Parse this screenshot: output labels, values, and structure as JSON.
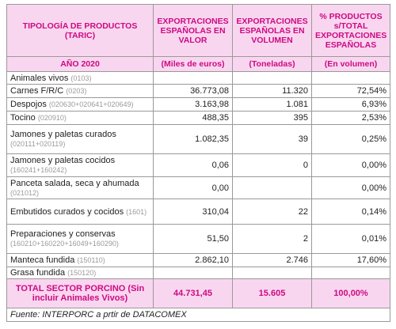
{
  "table": {
    "header": [
      "TIPOLOGÍA DE PRODUCTOS (TARIC)",
      "EXPORTACIONES ESPAÑOLAS EN VALOR",
      "EXPORTACIONES ESPAÑOLAS EN VOLUMEN",
      "% PRODUCTOS s/TOTAL EXPORTACIONES ESPAÑOLAS"
    ],
    "units": [
      "AÑO 2020",
      "(Miles de euros)",
      "(Toneladas)",
      "(En volumen)"
    ],
    "rows": [
      {
        "label": "Animales vivos",
        "code": "(0103)",
        "values": [
          null,
          null,
          null
        ]
      },
      {
        "label": "Carnes F/R/C",
        "code": "(0203)",
        "values": [
          "36.773,08",
          "11.320",
          "72,54%"
        ]
      },
      {
        "label": "Despojos",
        "code": "(020630+020641+020649)",
        "values": [
          "3.163,98",
          "1.081",
          "6,93%"
        ]
      },
      {
        "label": "Tocino",
        "code": "(020910)",
        "values": [
          "488,35",
          "395",
          "2,53%"
        ]
      },
      {
        "label": "Jamones y paletas curados",
        "code": "(020111+020119)",
        "values": [
          "1.082,35",
          "39",
          "0,25%"
        ]
      },
      {
        "label": "Jamones y paletas cocidos",
        "code": "(160241+160242)",
        "values": [
          "0,06",
          "0",
          "0,00%"
        ]
      },
      {
        "label": "Panceta salada, seca y ahumada",
        "code": "(021012)",
        "values": [
          "0,00",
          null,
          "0,00%"
        ]
      },
      {
        "label": "Embutidos curados y cocidos",
        "code": "(1601)",
        "values": [
          "310,04",
          "22",
          "0,14%"
        ]
      },
      {
        "label": "Preparaciones y conservas",
        "code": "(160210+160220+16049+160290)",
        "values": [
          "51,50",
          "2",
          "0,01%"
        ]
      },
      {
        "label": "Manteca fundida",
        "code": "(150110)",
        "values": [
          "2.862,10",
          "2.746",
          "17,60%"
        ]
      },
      {
        "label": "Grasa fundida",
        "code": "(150120)",
        "values": [
          null,
          null,
          null
        ]
      }
    ],
    "total": [
      "TOTAL SECTOR PORCINO (Sin incluir Animales Vivos)",
      "44.731,45",
      "15.605",
      "100,00%"
    ],
    "source": "Fuente:  INTERPORC a prtir de DATACOMEX"
  }
}
